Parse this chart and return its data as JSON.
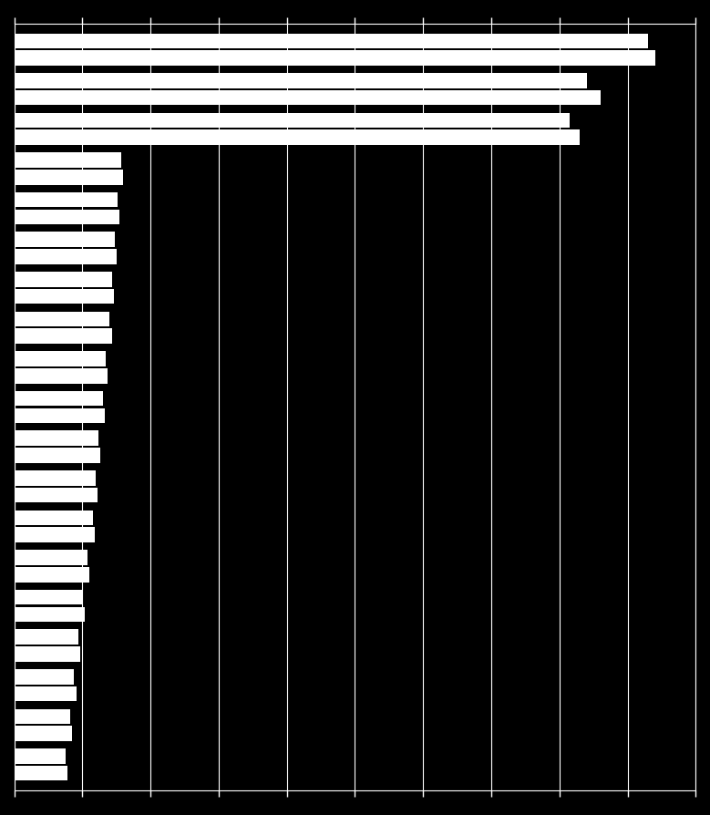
{
  "bar1_values": [
    9400,
    8600,
    8300,
    1600,
    1550,
    1500,
    1460,
    1430,
    1370,
    1330,
    1260,
    1220,
    1180,
    1100,
    1040,
    970,
    910,
    850,
    780
  ],
  "bar2_values": [
    9300,
    8400,
    8150,
    1570,
    1520,
    1470,
    1440,
    1400,
    1340,
    1300,
    1230,
    1190,
    1150,
    1070,
    1010,
    940,
    880,
    820,
    750
  ],
  "bar_color": "#ffffff",
  "background_color": "#000000",
  "grid_color": "#ffffff",
  "xlim_max": 10000,
  "xtick_interval": 1000,
  "bar_height": 0.38,
  "bar_gap": 0.05,
  "n_categories": 19
}
